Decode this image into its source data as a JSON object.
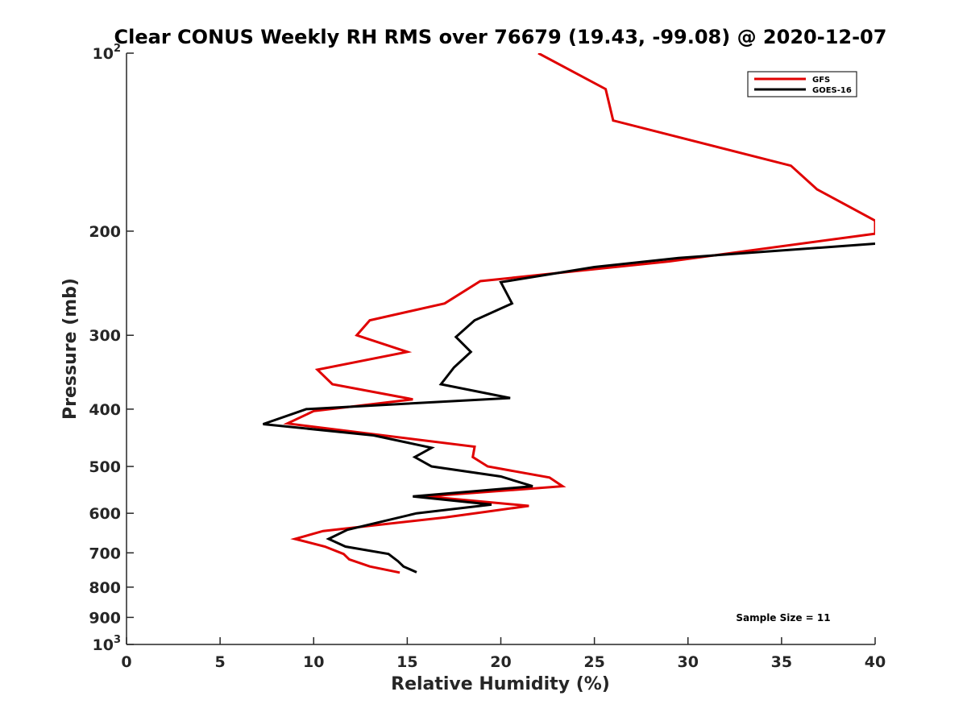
{
  "chart_data": {
    "type": "line",
    "title": "Clear CONUS Weekly RH RMS over 76679 (19.43, -99.08) @ 2020-12-07",
    "xlabel": "Relative Humidity (%)",
    "ylabel": "Pressure (mb)",
    "xlim": [
      0,
      40
    ],
    "ylim": [
      100,
      1000
    ],
    "y_scale": "log",
    "y_reversed": true,
    "x_ticks": [
      0,
      5,
      10,
      15,
      20,
      25,
      30,
      35,
      40
    ],
    "y_ticks": [
      {
        "value": 100,
        "base": "10",
        "exp": "2"
      },
      {
        "value": 200,
        "label": "200"
      },
      {
        "value": 300,
        "label": "300"
      },
      {
        "value": 400,
        "label": "400"
      },
      {
        "value": 500,
        "label": "500"
      },
      {
        "value": 600,
        "label": "600"
      },
      {
        "value": 700,
        "label": "700"
      },
      {
        "value": 800,
        "label": "800"
      },
      {
        "value": 900,
        "label": "900"
      },
      {
        "value": 1000,
        "base": "10",
        "exp": "3"
      }
    ],
    "grid": false,
    "legend_position": "top-right",
    "annotation": "Sample Size = 11",
    "series": [
      {
        "name": "GFS",
        "color": "#e00000",
        "points": [
          [
            22.0,
            100
          ],
          [
            25.6,
            115
          ],
          [
            26.0,
            130
          ],
          [
            35.5,
            155
          ],
          [
            36.9,
            170
          ],
          [
            40.0,
            192
          ],
          [
            40.0,
            202
          ],
          [
            29.0,
            225
          ],
          [
            18.9,
            243
          ],
          [
            17.0,
            265
          ],
          [
            13.0,
            283
          ],
          [
            12.3,
            300
          ],
          [
            15.0,
            320
          ],
          [
            10.2,
            343
          ],
          [
            11.0,
            363
          ],
          [
            15.3,
            385
          ],
          [
            10.0,
            403
          ],
          [
            8.6,
            423
          ],
          [
            18.6,
            463
          ],
          [
            18.5,
            482
          ],
          [
            19.3,
            500
          ],
          [
            22.6,
            522
          ],
          [
            23.3,
            540
          ],
          [
            16.0,
            562
          ],
          [
            21.5,
            583
          ],
          [
            17.0,
            610
          ],
          [
            10.5,
            643
          ],
          [
            9.0,
            663
          ],
          [
            10.6,
            683
          ],
          [
            11.6,
            703
          ],
          [
            11.9,
            718
          ],
          [
            13.0,
            738
          ],
          [
            14.6,
            756
          ]
        ]
      },
      {
        "name": "GOES-16",
        "color": "#000000",
        "points": [
          [
            40.0,
            210
          ],
          [
            29.5,
            222
          ],
          [
            25.0,
            230
          ],
          [
            20.0,
            244
          ],
          [
            20.6,
            265
          ],
          [
            18.6,
            283
          ],
          [
            17.6,
            302
          ],
          [
            18.4,
            320
          ],
          [
            17.5,
            340
          ],
          [
            16.8,
            363
          ],
          [
            20.5,
            383
          ],
          [
            9.6,
            400
          ],
          [
            7.3,
            424
          ],
          [
            13.2,
            443
          ],
          [
            16.3,
            465
          ],
          [
            15.4,
            482
          ],
          [
            16.3,
            500
          ],
          [
            20.0,
            520
          ],
          [
            21.7,
            540
          ],
          [
            15.3,
            562
          ],
          [
            19.5,
            580
          ],
          [
            15.5,
            600
          ],
          [
            11.8,
            640
          ],
          [
            10.8,
            663
          ],
          [
            11.7,
            683
          ],
          [
            14.0,
            703
          ],
          [
            14.5,
            723
          ],
          [
            14.8,
            738
          ],
          [
            15.5,
            755
          ]
        ]
      }
    ]
  }
}
